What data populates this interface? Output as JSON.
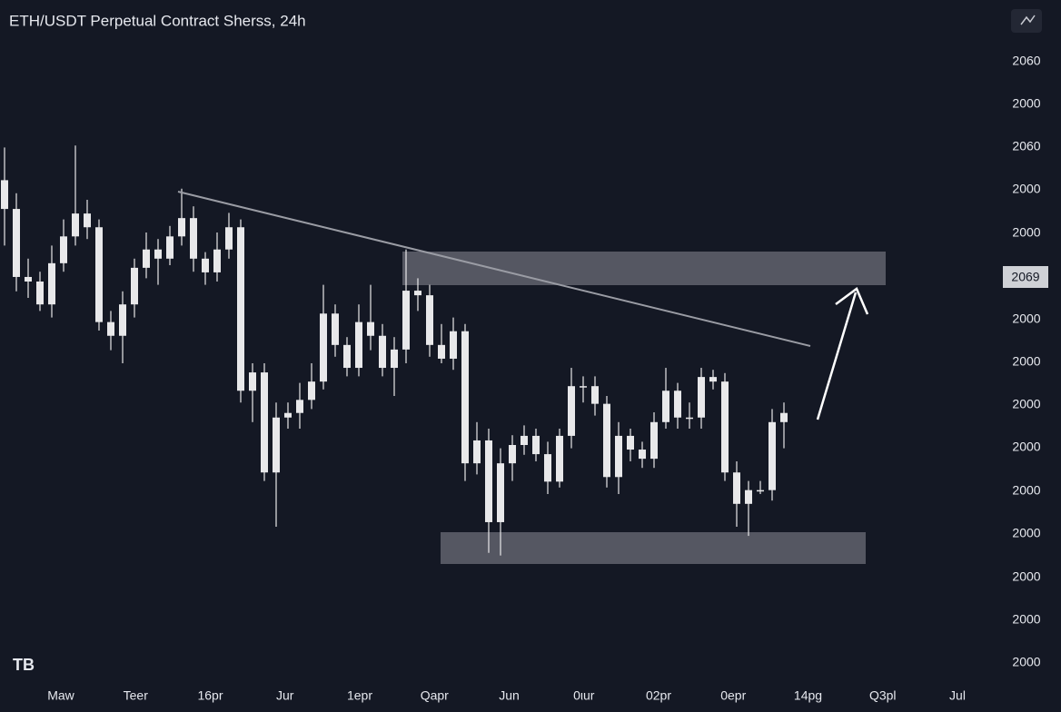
{
  "chart_data": {
    "type": "candlestick",
    "title": "ETH/USDT Perpetual Contract Sherss, 24h",
    "logo": "TB",
    "price_tag": "2069",
    "y_axis_labels": [
      "2060",
      "2000",
      "2060",
      "2000",
      "2000",
      "2000",
      "2000",
      "2000",
      "2000",
      "2000",
      "2000",
      "2000",
      "2000",
      "2000"
    ],
    "x_axis_labels": [
      "Maw",
      "Teer",
      "16pr",
      "Jur",
      "1epr",
      "Qapr",
      "Jun",
      "0ιur",
      "02pr",
      "0epr",
      "14pg",
      "Q3pl",
      "Jul"
    ],
    "ylim": [
      0,
      100
    ],
    "color": "#e8e8ea",
    "open": [
      78,
      73.6,
      63.2,
      62.5,
      59.0,
      65.3,
      69.4,
      72.9,
      70.8,
      56.3,
      54.2,
      59.0,
      64.6,
      67.4,
      66.0,
      69.4,
      72.2,
      66.0,
      63.9,
      67.4,
      70.8,
      45.8,
      48.6,
      33.3,
      41.7,
      42.4,
      44.4,
      47.2,
      57.6,
      52.8,
      49.3,
      56.3,
      54.2,
      49.3,
      52.1,
      61.1,
      60.4,
      52.8,
      50.7,
      54.9,
      34.7,
      38.2,
      25.7,
      34.7,
      37.5,
      38.9,
      36.1,
      31.9,
      38.9,
      46.5,
      46.5,
      43.8,
      32.6,
      38.9,
      36.8,
      35.4,
      41.0,
      45.8,
      41.7,
      41.7,
      47.9,
      47.2,
      33.3,
      28.5,
      30.6,
      30.6,
      41.0
    ],
    "high": [
      83,
      76,
      66,
      64,
      68,
      72,
      83.3,
      75,
      72,
      58,
      61,
      66,
      70,
      69,
      71,
      76.7,
      74,
      67,
      70,
      73,
      72,
      50,
      50,
      44,
      44,
      47,
      50,
      62,
      59,
      54,
      59,
      62,
      56,
      54,
      67.4,
      63,
      62,
      56,
      57,
      56,
      41,
      40,
      37,
      39,
      40.5,
      40,
      38,
      40,
      49.3,
      48,
      48,
      45,
      41,
      40,
      38,
      42.5,
      49.3,
      47,
      44,
      49.3,
      49,
      48.5,
      35,
      32,
      32,
      43,
      44
    ],
    "low": [
      68,
      61,
      60,
      58,
      57,
      64,
      68,
      69,
      55,
      52,
      50,
      57,
      63,
      62,
      65,
      68,
      64,
      62,
      62.5,
      66,
      44,
      41,
      32,
      25,
      40,
      40,
      43,
      46,
      51,
      48,
      48,
      52,
      48,
      45,
      50,
      58,
      51,
      50,
      49,
      32,
      33,
      21,
      20.6,
      32,
      36,
      35,
      30,
      31,
      37,
      44,
      42,
      31,
      30,
      35,
      34,
      34,
      40,
      40,
      40,
      40,
      46,
      32,
      25,
      23.6,
      30,
      29,
      37
    ],
    "close": [
      73.6,
      63.2,
      62.5,
      59.0,
      65.3,
      69.4,
      72.9,
      70.8,
      56.3,
      54.2,
      59.0,
      64.6,
      67.4,
      66.0,
      69.4,
      72.2,
      66.0,
      63.9,
      67.4,
      70.8,
      45.8,
      48.6,
      33.3,
      41.7,
      42.4,
      44.4,
      47.2,
      57.6,
      52.8,
      49.3,
      56.3,
      54.2,
      49.3,
      52.1,
      61.1,
      60.4,
      52.8,
      50.7,
      54.9,
      34.7,
      38.2,
      25.7,
      34.7,
      37.5,
      38.9,
      36.1,
      31.9,
      38.9,
      46.5,
      46.5,
      43.8,
      32.6,
      38.9,
      36.8,
      35.4,
      41.0,
      45.8,
      41.7,
      41.7,
      47.9,
      47.2,
      33.3,
      28.5,
      30.6,
      30.6,
      41.0,
      42.4
    ]
  }
}
